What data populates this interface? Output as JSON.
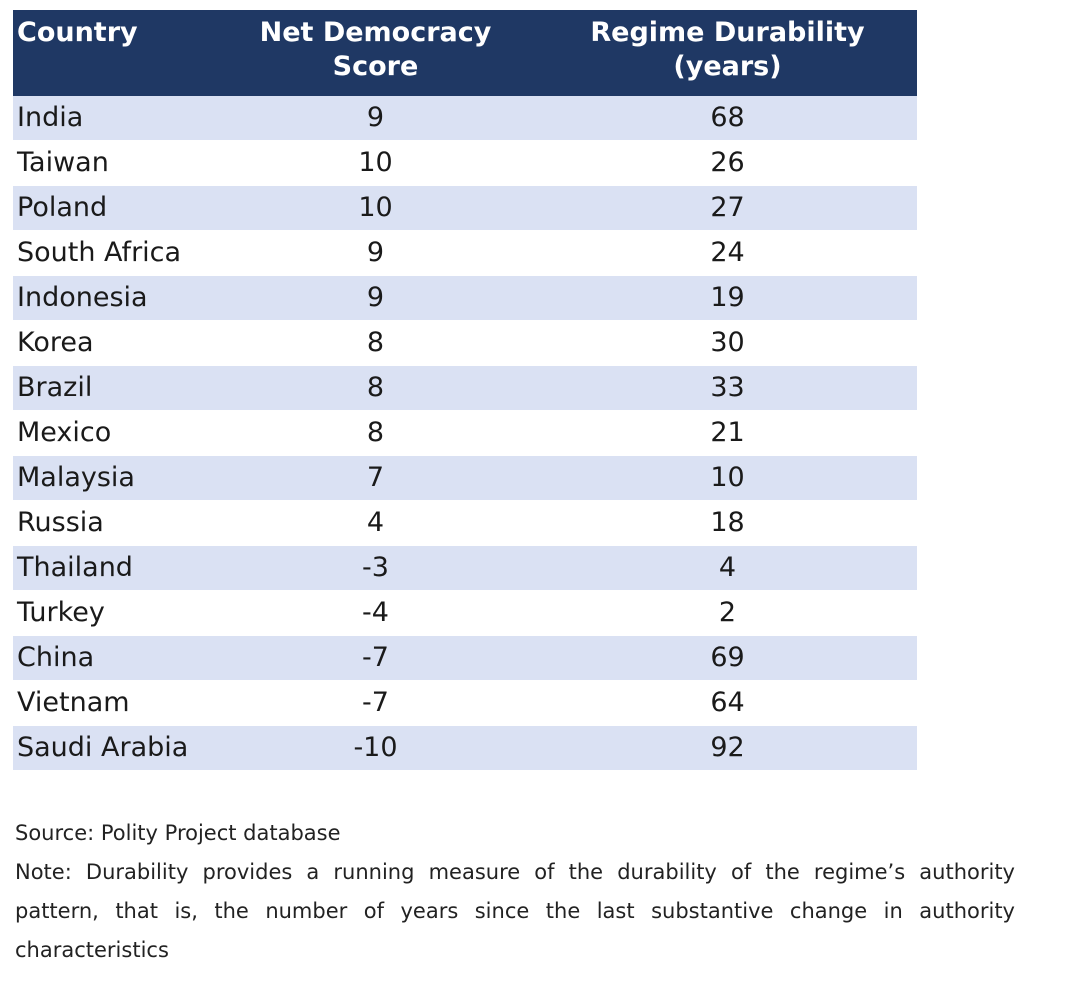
{
  "table": {
    "headers": {
      "country": "Country",
      "democracy": "Net Democracy Score",
      "durability_line1": "Regime Durability",
      "durability_line2": "(years)"
    },
    "rows": [
      {
        "country": "India",
        "democracy": "9",
        "durability": "68"
      },
      {
        "country": "Taiwan",
        "democracy": "10",
        "durability": "26"
      },
      {
        "country": "Poland",
        "democracy": "10",
        "durability": "27"
      },
      {
        "country": "South Africa",
        "democracy": "9",
        "durability": "24"
      },
      {
        "country": "Indonesia",
        "democracy": "9",
        "durability": "19"
      },
      {
        "country": "Korea",
        "democracy": "8",
        "durability": "30"
      },
      {
        "country": "Brazil",
        "democracy": "8",
        "durability": "33"
      },
      {
        "country": "Mexico",
        "democracy": "8",
        "durability": "21"
      },
      {
        "country": "Malaysia",
        "democracy": "7",
        "durability": "10"
      },
      {
        "country": "Russia",
        "democracy": "4",
        "durability": "18"
      },
      {
        "country": "Thailand",
        "democracy": "-3",
        "durability": "4"
      },
      {
        "country": "Turkey",
        "democracy": "-4",
        "durability": "2"
      },
      {
        "country": "China",
        "democracy": "-7",
        "durability": "69"
      },
      {
        "country": "Vietnam",
        "democracy": "-7",
        "durability": "64"
      },
      {
        "country": "Saudi Arabia",
        "democracy": "-10",
        "durability": "92"
      }
    ]
  },
  "footer": {
    "source": "Source: Polity Project database",
    "note": "Note: Durability provides a running measure of the durability of the regime’s authority pattern, that is, the number of years since the last substantive change in authority characteristics"
  },
  "colors": {
    "header_bg": "#1f3864",
    "header_text": "#ffffff",
    "band_row": "#dae1f3",
    "plain_row": "#ffffff"
  }
}
